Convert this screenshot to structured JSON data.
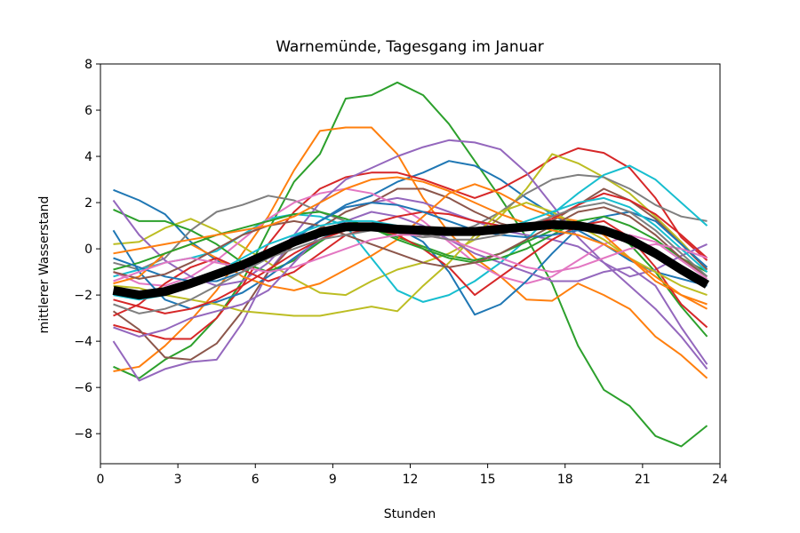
{
  "chart_data": {
    "type": "line",
    "title": "Warnemünde, Tagesgang im Januar",
    "xlabel": "Stunden",
    "ylabel": "mittlerer Wasserstand",
    "xlim": [
      0,
      24
    ],
    "ylim": [
      -9.3,
      8
    ],
    "xticks": [
      0,
      3,
      6,
      9,
      12,
      15,
      18,
      21,
      24
    ],
    "yticks": [
      -8,
      -6,
      -4,
      -2,
      0,
      2,
      4,
      6,
      8
    ],
    "xtick_labels": [
      "0",
      "3",
      "6",
      "9",
      "12",
      "15",
      "18",
      "21",
      "24"
    ],
    "ytick_labels": [
      "−8",
      "−6",
      "−4",
      "−2",
      "0",
      "2",
      "4",
      "6",
      "8"
    ],
    "grid": false,
    "x": [
      0.5,
      1.5,
      2.5,
      3.5,
      4.5,
      5.5,
      6.5,
      7.5,
      8.5,
      9.5,
      10.5,
      11.5,
      12.5,
      13.5,
      14.5,
      15.5,
      16.5,
      17.5,
      18.5,
      19.5,
      20.5,
      21.5,
      22.5,
      23.5
    ],
    "mean_series": {
      "color": "#000000",
      "values": [
        -1.8,
        -2.0,
        -1.85,
        -1.5,
        -1.1,
        -0.7,
        -0.2,
        0.3,
        0.7,
        0.95,
        0.95,
        0.85,
        0.8,
        0.75,
        0.75,
        0.85,
        0.95,
        1.05,
        1.0,
        0.8,
        0.4,
        -0.2,
        -0.9,
        -1.55
      ]
    },
    "series": [
      {
        "color": "#2ca02c",
        "values": [
          -5.1,
          -5.6,
          -4.8,
          -4.2,
          -3.0,
          -1.4,
          0.8,
          2.9,
          4.1,
          6.5,
          6.65,
          7.2,
          6.65,
          5.4,
          3.8,
          2.2,
          0.5,
          -1.5,
          -4.2,
          -6.1,
          -6.8,
          -8.1,
          -8.55,
          -7.65
        ]
      },
      {
        "color": "#1f77b4",
        "values": [
          2.55,
          2.1,
          1.5,
          0.3,
          -0.5,
          -0.9,
          -0.4,
          0.5,
          1.2,
          1.9,
          2.3,
          2.9,
          3.3,
          3.8,
          3.6,
          3.0,
          2.2,
          1.5,
          0.8,
          0.2,
          -0.5,
          -1.0,
          -1.3,
          -1.6
        ]
      },
      {
        "color": "#ff7f0e",
        "values": [
          -5.3,
          -5.1,
          -4.2,
          -3.1,
          -1.8,
          -0.2,
          1.4,
          3.4,
          5.1,
          5.25,
          5.25,
          4.1,
          2.2,
          0.7,
          -0.4,
          -1.2,
          -2.2,
          -2.25,
          -1.5,
          -2.0,
          -2.6,
          -3.8,
          -4.6,
          -5.6
        ]
      },
      {
        "color": "#9467bd",
        "values": [
          -4.0,
          -5.7,
          -5.2,
          -4.9,
          -4.8,
          -3.2,
          -1.0,
          0.4,
          1.2,
          1.8,
          2.0,
          2.2,
          2.0,
          1.6,
          1.2,
          0.8,
          0.6,
          0.4,
          0.1,
          -0.6,
          -1.6,
          -2.6,
          -3.8,
          -5.2
        ]
      },
      {
        "color": "#d62728",
        "values": [
          -3.3,
          -3.6,
          -3.9,
          -3.9,
          -3.0,
          -1.6,
          0.2,
          1.6,
          2.6,
          3.1,
          3.3,
          3.3,
          3.0,
          2.6,
          2.2,
          2.6,
          3.2,
          3.9,
          4.35,
          4.15,
          3.5,
          2.2,
          0.5,
          -0.5
        ]
      },
      {
        "color": "#bcbd22",
        "values": [
          0.2,
          0.3,
          0.9,
          1.3,
          0.8,
          0.1,
          -0.6,
          -1.3,
          -1.9,
          -2.0,
          -1.4,
          -0.9,
          -0.6,
          -0.2,
          0.4,
          1.4,
          2.6,
          4.1,
          3.7,
          3.1,
          2.4,
          1.4,
          0.3,
          -0.9
        ]
      },
      {
        "color": "#7f7f7f",
        "values": [
          -0.6,
          -0.9,
          -0.4,
          0.8,
          1.6,
          1.9,
          2.3,
          2.1,
          1.6,
          1.2,
          1.0,
          0.7,
          0.5,
          0.6,
          1.0,
          1.6,
          2.4,
          3.0,
          3.2,
          3.1,
          2.6,
          1.9,
          1.4,
          1.2
        ]
      },
      {
        "color": "#17becf",
        "values": [
          -1.2,
          -0.9,
          -0.6,
          -0.4,
          -0.1,
          0.6,
          1.3,
          1.5,
          1.4,
          1.0,
          -0.4,
          -1.8,
          -2.3,
          -2.0,
          -1.4,
          -0.6,
          0.4,
          1.5,
          2.4,
          3.2,
          3.6,
          3.0,
          2.0,
          1.0
        ]
      },
      {
        "color": "#8c564b",
        "values": [
          -2.7,
          -3.5,
          -4.7,
          -4.8,
          -4.1,
          -2.7,
          -1.0,
          0.2,
          0.9,
          1.6,
          2.0,
          2.6,
          2.6,
          2.2,
          1.6,
          1.1,
          0.8,
          1.2,
          1.9,
          2.6,
          2.1,
          1.3,
          0.2,
          -0.9
        ]
      },
      {
        "color": "#e377c2",
        "values": [
          -1.0,
          -1.5,
          -1.6,
          -1.2,
          -0.5,
          0.4,
          1.3,
          2.0,
          2.4,
          2.6,
          2.4,
          1.9,
          1.2,
          0.3,
          -0.6,
          -1.2,
          -1.5,
          -1.2,
          -0.5,
          0.2,
          0.6,
          0.3,
          -0.5,
          -1.3
        ]
      },
      {
        "color": "#2ca02c",
        "values": [
          1.7,
          1.2,
          1.2,
          0.8,
          0.2,
          -0.6,
          -1.0,
          -0.5,
          0.3,
          1.0,
          0.9,
          0.5,
          0.1,
          -0.3,
          -0.5,
          -0.2,
          0.3,
          0.8,
          1.0,
          0.8,
          0.2,
          -1.0,
          -2.5,
          -3.8
        ]
      },
      {
        "color": "#1f77b4",
        "values": [
          0.8,
          -1.0,
          -2.2,
          -2.6,
          -2.3,
          -1.9,
          -1.2,
          -0.4,
          0.4,
          0.9,
          1.1,
          0.9,
          0.3,
          -1.0,
          -2.85,
          -2.4,
          -1.4,
          -0.2,
          0.9,
          1.4,
          1.6,
          1.2,
          0.2,
          -0.8
        ]
      },
      {
        "color": "#9467bd",
        "values": [
          2.1,
          0.6,
          -0.5,
          -1.2,
          -1.6,
          -1.4,
          -0.6,
          0.6,
          2.0,
          3.0,
          3.5,
          4.0,
          4.4,
          4.7,
          4.6,
          4.3,
          3.3,
          1.9,
          0.5,
          -0.6,
          -1.2,
          -0.9,
          -0.3,
          0.2
        ]
      },
      {
        "color": "#ff7f0e",
        "values": [
          -1.5,
          -1.2,
          -0.2,
          0.2,
          -0.4,
          -1.2,
          -1.6,
          -1.8,
          -1.5,
          -0.9,
          -0.3,
          0.4,
          1.4,
          2.4,
          2.8,
          2.4,
          1.8,
          1.4,
          1.2,
          0.6,
          -0.4,
          -1.4,
          -2.0,
          -2.4
        ]
      },
      {
        "color": "#d62728",
        "values": [
          -2.9,
          -2.4,
          -1.5,
          -0.8,
          -0.4,
          -0.9,
          -1.4,
          -1.0,
          -0.2,
          0.6,
          0.9,
          0.6,
          0.0,
          -0.8,
          -2.0,
          -1.2,
          -0.4,
          0.4,
          1.0,
          1.2,
          0.5,
          -0.8,
          -2.4,
          -3.4
        ]
      },
      {
        "color": "#bcbd22",
        "values": [
          -1.6,
          -1.7,
          -2.0,
          -2.2,
          -2.4,
          -2.7,
          -2.8,
          -2.9,
          -2.9,
          -2.7,
          -2.5,
          -2.7,
          -1.6,
          -0.6,
          0.6,
          1.6,
          2.0,
          1.6,
          1.0,
          0.4,
          -0.4,
          -1.0,
          -1.6,
          -2.0
        ]
      },
      {
        "color": "#9467bd",
        "values": [
          -3.4,
          -3.8,
          -3.5,
          -3.0,
          -2.7,
          -2.4,
          -1.8,
          -0.6,
          0.6,
          1.2,
          1.6,
          1.4,
          1.0,
          0.4,
          -0.2,
          -0.6,
          -1.0,
          -1.4,
          -1.4,
          -1.0,
          -0.8,
          -1.6,
          -3.4,
          -5.0
        ]
      },
      {
        "color": "#2ca02c",
        "values": [
          -0.9,
          -0.6,
          -0.2,
          0.2,
          0.6,
          0.9,
          1.2,
          1.5,
          1.6,
          1.3,
          0.9,
          0.4,
          0.0,
          -0.4,
          -0.6,
          -0.4,
          0.0,
          0.6,
          1.2,
          1.4,
          1.0,
          0.4,
          -0.4,
          -1.0
        ]
      },
      {
        "color": "#d62728",
        "values": [
          -2.2,
          -2.5,
          -2.8,
          -2.6,
          -2.2,
          -1.6,
          -0.9,
          -0.2,
          0.4,
          0.8,
          1.1,
          1.4,
          1.6,
          1.5,
          1.2,
          1.0,
          1.0,
          1.3,
          1.9,
          2.4,
          2.1,
          1.5,
          0.6,
          -0.4
        ]
      },
      {
        "color": "#1f77b4",
        "values": [
          -0.4,
          -0.8,
          -1.2,
          -1.4,
          -1.4,
          -1.0,
          -0.4,
          0.4,
          1.2,
          1.8,
          2.0,
          1.9,
          1.6,
          1.2,
          0.8,
          0.6,
          0.5,
          0.6,
          0.8,
          0.8,
          0.4,
          -0.2,
          -0.8,
          -1.4
        ]
      },
      {
        "color": "#8c564b",
        "values": [
          -1.0,
          -1.3,
          -1.1,
          -0.6,
          0.0,
          0.6,
          1.0,
          1.2,
          1.0,
          0.6,
          0.2,
          -0.2,
          -0.6,
          -0.8,
          -0.6,
          -0.2,
          0.4,
          1.0,
          1.6,
          1.8,
          1.4,
          0.6,
          -0.4,
          -1.2
        ]
      },
      {
        "color": "#ff7f0e",
        "values": [
          -0.2,
          0.0,
          0.2,
          0.4,
          0.6,
          0.8,
          1.0,
          1.4,
          2.0,
          2.6,
          3.0,
          3.1,
          2.9,
          2.5,
          2.0,
          1.5,
          1.1,
          0.8,
          0.6,
          0.2,
          -0.4,
          -1.2,
          -2.0,
          -2.6
        ]
      },
      {
        "color": "#17becf",
        "values": [
          -2.0,
          -2.2,
          -2.0,
          -1.6,
          -1.0,
          -0.4,
          0.2,
          0.6,
          1.0,
          1.2,
          1.2,
          1.0,
          0.8,
          0.6,
          0.6,
          0.8,
          1.2,
          1.6,
          2.0,
          2.2,
          1.8,
          1.0,
          0.0,
          -1.0
        ]
      },
      {
        "color": "#e377c2",
        "values": [
          -1.4,
          -1.0,
          -0.6,
          -0.4,
          -0.6,
          -0.8,
          -1.0,
          -0.8,
          -0.4,
          0.0,
          0.4,
          0.6,
          0.6,
          0.4,
          0.0,
          -0.4,
          -0.8,
          -1.0,
          -0.8,
          -0.4,
          0.0,
          0.2,
          0.0,
          -0.4
        ]
      },
      {
        "color": "#7f7f7f",
        "values": [
          -2.4,
          -2.8,
          -2.6,
          -2.2,
          -1.6,
          -1.0,
          -0.4,
          0.0,
          0.4,
          0.6,
          0.8,
          0.8,
          0.6,
          0.4,
          0.4,
          0.6,
          1.0,
          1.4,
          1.8,
          2.0,
          1.6,
          0.8,
          -0.2,
          -1.2
        ]
      }
    ]
  }
}
